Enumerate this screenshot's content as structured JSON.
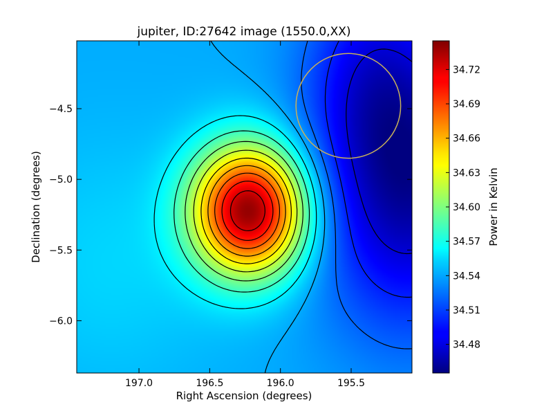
{
  "chart_data": {
    "type": "heatmap",
    "title": "jupiter, ID:27642 image (1550.0,XX)",
    "xlabel": "Right Ascension (degrees)",
    "ylabel": "Declination (degrees)",
    "colorbar_label": "Power in Kelvin",
    "x_ticks": [
      "197.0",
      "196.5",
      "196.0",
      "195.5"
    ],
    "y_ticks": [
      "-4.5",
      "-5.0",
      "-5.5",
      "-6.0"
    ],
    "colorbar_ticks": [
      "34.72",
      "34.69",
      "34.66",
      "34.63",
      "34.60",
      "34.57",
      "34.54",
      "34.51",
      "34.48"
    ],
    "xlim": [
      197.44,
      195.07
    ],
    "ylim": [
      -6.37,
      -4.02
    ],
    "colorbar_range": [
      34.455,
      34.745
    ],
    "colormap": "jet",
    "peak": {
      "ra": 196.22,
      "dec": -5.22,
      "value": 34.74
    },
    "minimum": {
      "ra": 195.1,
      "dec": -4.95,
      "value": 34.455
    },
    "circle_marker": {
      "ra": 195.52,
      "dec": -4.48,
      "radius_deg": 0.37,
      "color": "#c8b15a"
    },
    "contour_color": "#000000"
  }
}
